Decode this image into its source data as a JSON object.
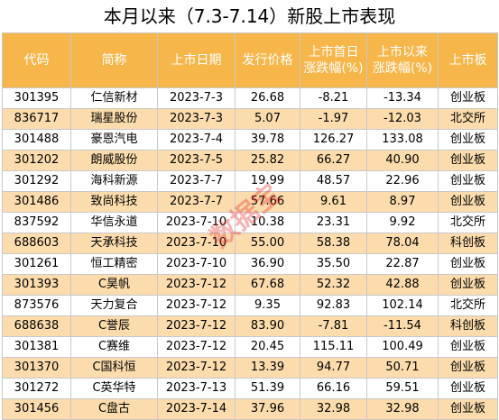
{
  "title": "本月以来（7.3-7.14）新股上市表现",
  "watermark": "数据宝",
  "columns": [
    "代码",
    "简称",
    "上市日期",
    "发行价格",
    "上市首日\n涨跌幅(%)",
    "上市以来\n涨跌幅(%)",
    "上市板"
  ],
  "rows": [
    [
      "301395",
      "仁信新材",
      "2023-7-3",
      "26.68",
      "-8.21",
      "-13.34",
      "创业板"
    ],
    [
      "836717",
      "瑞星股份",
      "2023-7-3",
      "5.07",
      "-1.97",
      "-12.03",
      "北交所"
    ],
    [
      "301488",
      "豪恩汽电",
      "2023-7-4",
      "39.78",
      "126.27",
      "133.08",
      "创业板"
    ],
    [
      "301202",
      "朗威股份",
      "2023-7-5",
      "25.82",
      "66.27",
      "40.90",
      "创业板"
    ],
    [
      "301292",
      "海科新源",
      "2023-7-7",
      "19.99",
      "48.57",
      "22.96",
      "创业板"
    ],
    [
      "301486",
      "致尚科技",
      "2023-7-7",
      "57.66",
      "9.61",
      "8.97",
      "创业板"
    ],
    [
      "837592",
      "华信永道",
      "2023-7-10",
      "10.38",
      "23.31",
      "9.92",
      "北交所"
    ],
    [
      "688603",
      "天承科技",
      "2023-7-10",
      "55.00",
      "58.38",
      "78.04",
      "科创板"
    ],
    [
      "301261",
      "恒工精密",
      "2023-7-10",
      "36.90",
      "35.50",
      "22.87",
      "创业板"
    ],
    [
      "301393",
      "C昊帆",
      "2023-7-12",
      "67.68",
      "52.32",
      "42.88",
      "创业板"
    ],
    [
      "873576",
      "天力复合",
      "2023-7-12",
      "9.35",
      "92.83",
      "102.14",
      "北交所"
    ],
    [
      "688638",
      "C誉辰",
      "2023-7-12",
      "83.90",
      "-7.81",
      "-11.54",
      "科创板"
    ],
    [
      "301381",
      "C赛维",
      "2023-7-12",
      "20.45",
      "115.11",
      "100.49",
      "创业板"
    ],
    [
      "301370",
      "C国科恒",
      "2023-7-12",
      "13.39",
      "94.77",
      "50.71",
      "创业板"
    ],
    [
      "301272",
      "C英华特",
      "2023-7-13",
      "51.39",
      "66.16",
      "59.51",
      "创业板"
    ],
    [
      "301456",
      "C盘古",
      "2023-7-14",
      "37.96",
      "32.98",
      "32.98",
      "创业板"
    ]
  ]
}
